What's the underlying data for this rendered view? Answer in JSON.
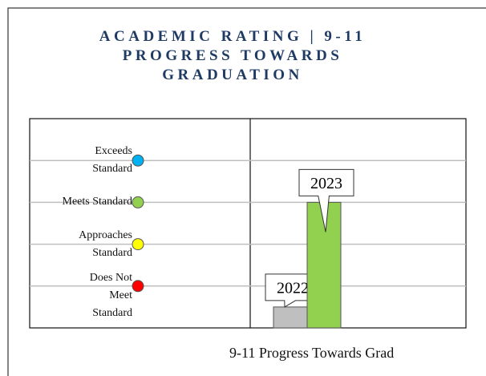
{
  "chart_data": {
    "type": "bar",
    "title": "ACADEMIC RATING | 9-11 PROGRESS TOWARDS GRADUATION",
    "x_label": "9-11 Progress Towards Grad",
    "categories": [
      "2022",
      "2023"
    ],
    "values": [
      0.5,
      3
    ],
    "colors": [
      "#bfbfbf",
      "#92d050"
    ],
    "ylim": [
      0,
      5
    ],
    "yticks": [
      {
        "value": 4,
        "label": "Exceeds Standard"
      },
      {
        "value": 3,
        "label": "Meets Standard"
      },
      {
        "value": 2,
        "label": "Approaches Standard"
      },
      {
        "value": 1,
        "label": "Does Not Meet Standard"
      }
    ],
    "level_colors": [
      "#00b0f0",
      "#92d050",
      "#ffff00",
      "#ff0000"
    ],
    "grid": true
  }
}
